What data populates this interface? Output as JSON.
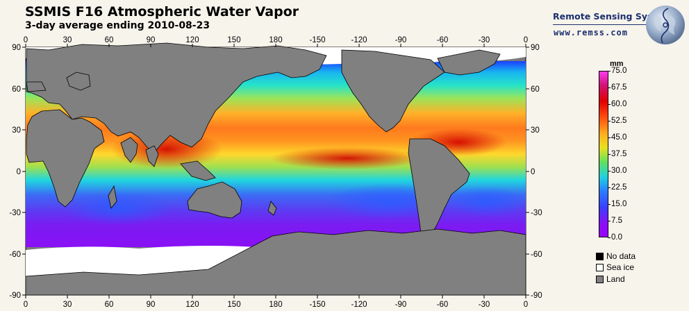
{
  "header": {
    "title": "SSMIS F16 Atmospheric Water Vapor",
    "subtitle": "3-day average ending 2010-08-23"
  },
  "brand": {
    "name": "Remote Sensing Systems",
    "url": "www.remss.com",
    "logo_icon": "globe-logo-icon"
  },
  "map": {
    "lon_ticks": [
      "0",
      "30",
      "60",
      "90",
      "120",
      "150",
      "180",
      "-150",
      "-120",
      "-90",
      "-60",
      "-30",
      "0"
    ],
    "lat_ticks": [
      "90",
      "60",
      "30",
      "0",
      "-30",
      "-60",
      "-90"
    ],
    "colors": {
      "land": "#808080",
      "sea_ice": "#ffffff",
      "no_data": "#000000"
    }
  },
  "legend": {
    "unit": "mm",
    "labels": [
      "75.0",
      "67.5",
      "60.0",
      "52.5",
      "45.0",
      "37.5",
      "30.0",
      "22.5",
      "15.0",
      "7.5",
      "0.0"
    ],
    "range": [
      0,
      75
    ],
    "key": [
      {
        "label": "No data",
        "color": "#000000"
      },
      {
        "label": "Sea ice",
        "color": "#ffffff"
      },
      {
        "label": "Land",
        "color": "#808080"
      }
    ]
  }
}
